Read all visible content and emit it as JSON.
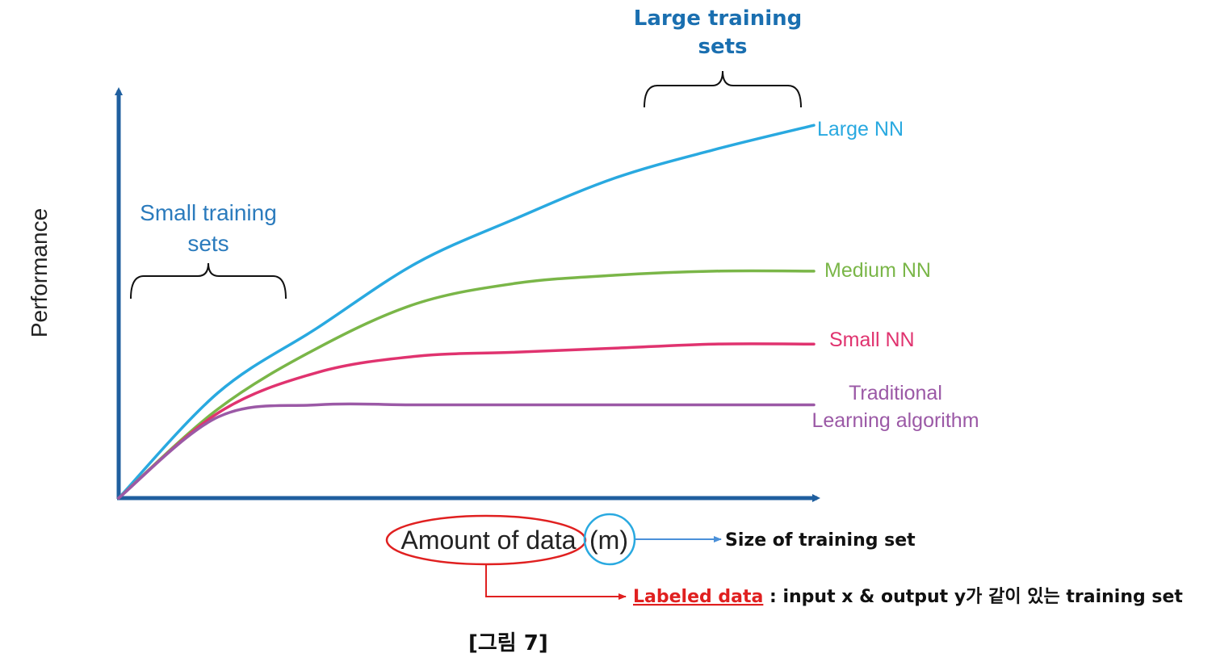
{
  "chart_data": {
    "type": "line",
    "xlabel": "Amount of data",
    "xlabel_suffix": "(m)",
    "ylabel": "Performance",
    "series": [
      {
        "name": "Large NN",
        "color": "#29a9e0",
        "y": [
          0.0,
          0.26,
          0.42,
          0.58,
          0.69,
          0.79,
          0.86,
          0.92
        ]
      },
      {
        "name": "Medium NN",
        "color": "#7ab648",
        "y": [
          0.0,
          0.22,
          0.37,
          0.48,
          0.53,
          0.55,
          0.56,
          0.56
        ]
      },
      {
        "name": "Small NN",
        "color": "#e0336f",
        "y": [
          0.0,
          0.21,
          0.31,
          0.35,
          0.36,
          0.37,
          0.38,
          0.38
        ]
      },
      {
        "name": "Traditional Learning algorithm",
        "label_lines": [
          "Traditional",
          "Learning algorithm"
        ],
        "color": "#9b59a6",
        "y": [
          0.0,
          0.2,
          0.23,
          0.23,
          0.23,
          0.23,
          0.23,
          0.23
        ]
      }
    ],
    "annotations": {
      "small_sets": [
        "Small training",
        "sets"
      ],
      "large_sets": [
        "Large training",
        "sets"
      ],
      "m_note": "Size of training set",
      "labeled_link": "Labeled data",
      "labeled_desc": " : input x & output y가 같이 있는 training set"
    },
    "grid": false,
    "legend": "inline-right"
  },
  "colors": {
    "axis": "#1f5f9f",
    "highlight_red": "#e02020",
    "highlight_blue": "#29a9e0",
    "annotation_blue": "#1a6fb0",
    "small_sets_text": "#2b7bbd"
  },
  "caption": "[그림 7]"
}
